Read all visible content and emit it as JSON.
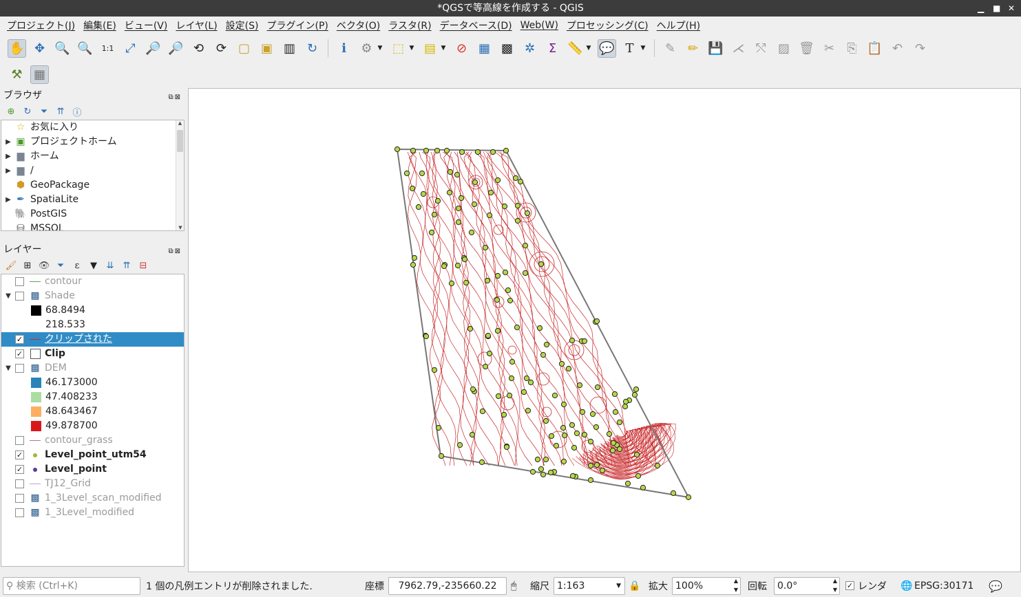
{
  "window": {
    "title": "*QGSで等高線を作成する - QGIS"
  },
  "menu": [
    "プロジェクト(J)",
    "編集(E)",
    "ビュー(V)",
    "レイヤ(L)",
    "設定(S)",
    "プラグイン(P)",
    "ベクタ(O)",
    "ラスタ(R)",
    "データベース(D)",
    "Web(W)",
    "プロセッシング(C)",
    "ヘルプ(H)"
  ],
  "browser": {
    "title": "ブラウザ",
    "items": [
      {
        "label": "お気に入り"
      },
      {
        "label": "プロジェクトホーム"
      },
      {
        "label": "ホーム"
      },
      {
        "label": "/"
      },
      {
        "label": "GeoPackage"
      },
      {
        "label": "SpatiaLite"
      },
      {
        "label": "PostGIS"
      },
      {
        "label": "MSSQL"
      }
    ]
  },
  "layers": {
    "title": "レイヤー",
    "items": [
      {
        "label": "contour"
      },
      {
        "label": "Shade"
      },
      {
        "label": "68.8494"
      },
      {
        "label": "218.533"
      },
      {
        "label": "クリップされた"
      },
      {
        "label": "Clip"
      },
      {
        "label": "DEM"
      },
      {
        "label": "46.173000",
        "color": "#2b83ba"
      },
      {
        "label": "47.408233",
        "color": "#abdda4"
      },
      {
        "label": "48.643467",
        "color": "#fdae61"
      },
      {
        "label": "49.878700",
        "color": "#d7191c"
      },
      {
        "label": "contour_grass"
      },
      {
        "label": "Level_point_utm54"
      },
      {
        "label": "Level_point"
      },
      {
        "label": "TJ12_Grid"
      },
      {
        "label": "1_3Level_scan_modified"
      },
      {
        "label": "1_3Level_modified"
      }
    ]
  },
  "status": {
    "search_placeholder": "検索 (Ctrl+K)",
    "message": "1 個の凡例エントリが削除されました.",
    "coord_label": "座標",
    "coord_value": "7962.79,-235660.22",
    "scale_label": "縮尺",
    "scale_value": "1:163",
    "magnifier_label": "拡大",
    "magnifier_value": "100%",
    "rotation_label": "回転",
    "rotation_value": "0.0°",
    "render_label": "レンダ",
    "crs": "EPSG:30171"
  },
  "colors": {
    "selection": "#308cc6",
    "contour": "#c8282a",
    "point_fill": "#b8d64a"
  }
}
